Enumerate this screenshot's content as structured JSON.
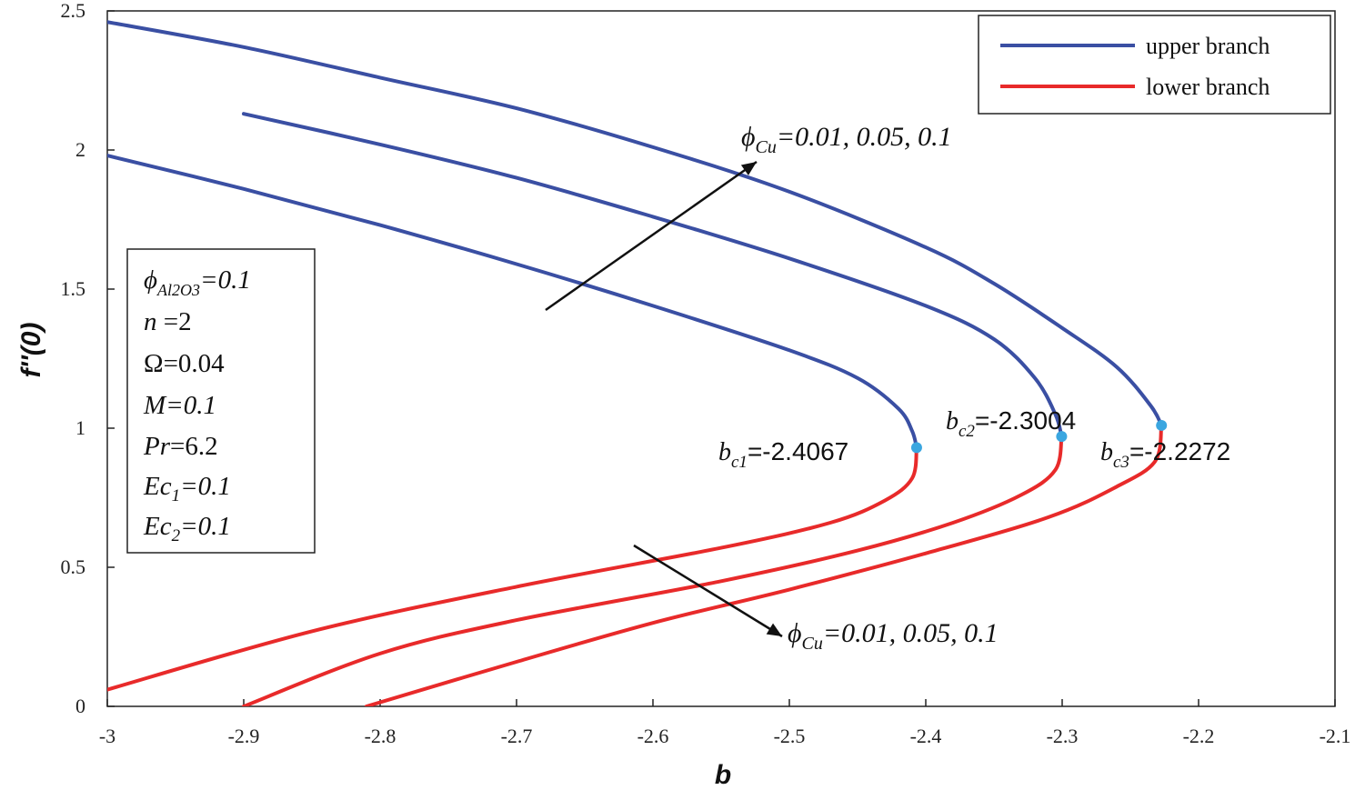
{
  "chart_data": {
    "type": "line",
    "xlabel": "b",
    "ylabel": "f''(0)",
    "xlim": [
      -3,
      -2.1
    ],
    "ylim": [
      0,
      2.5
    ],
    "xticks": [
      "-3",
      "-2.9",
      "-2.8",
      "-2.7",
      "-2.6",
      "-2.5",
      "-2.4",
      "-2.3",
      "-2.2",
      "-2.1"
    ],
    "yticks": [
      "0",
      "0.5",
      "1",
      "1.5",
      "2",
      "2.5"
    ],
    "grid": false,
    "legend": {
      "placement": "top-right",
      "entries": [
        {
          "label": "upper branch",
          "color": "#3a4fa3"
        },
        {
          "label": "lower branch",
          "color": "#e82a2a"
        }
      ]
    },
    "series": [
      {
        "branch": "upper",
        "color": "#3a4fa3",
        "points": [
          [
            -3.0,
            1.98
          ],
          [
            -2.9,
            1.86
          ],
          [
            -2.8,
            1.73
          ],
          [
            -2.7,
            1.59
          ],
          [
            -2.6,
            1.44
          ],
          [
            -2.5,
            1.28
          ],
          [
            -2.45,
            1.18
          ],
          [
            -2.42,
            1.07
          ],
          [
            -2.41,
            0.99
          ],
          [
            -2.4067,
            0.93
          ]
        ]
      },
      {
        "branch": "upper",
        "color": "#3a4fa3",
        "points": [
          [
            -2.9,
            2.13
          ],
          [
            -2.8,
            2.02
          ],
          [
            -2.7,
            1.9
          ],
          [
            -2.6,
            1.76
          ],
          [
            -2.5,
            1.61
          ],
          [
            -2.4,
            1.44
          ],
          [
            -2.35,
            1.32
          ],
          [
            -2.32,
            1.18
          ],
          [
            -2.305,
            1.05
          ],
          [
            -2.3004,
            0.97
          ]
        ]
      },
      {
        "branch": "upper",
        "color": "#3a4fa3",
        "points": [
          [
            -3.0,
            2.46
          ],
          [
            -2.9,
            2.37
          ],
          [
            -2.8,
            2.26
          ],
          [
            -2.7,
            2.15
          ],
          [
            -2.6,
            2.01
          ],
          [
            -2.5,
            1.85
          ],
          [
            -2.4,
            1.65
          ],
          [
            -2.35,
            1.52
          ],
          [
            -2.3,
            1.36
          ],
          [
            -2.26,
            1.22
          ],
          [
            -2.235,
            1.08
          ],
          [
            -2.2272,
            1.01
          ]
        ]
      },
      {
        "branch": "lower",
        "color": "#e82a2a",
        "points": [
          [
            -2.4067,
            0.93
          ],
          [
            -2.41,
            0.82
          ],
          [
            -2.43,
            0.74
          ],
          [
            -2.47,
            0.66
          ],
          [
            -2.55,
            0.57
          ],
          [
            -2.7,
            0.43
          ],
          [
            -2.85,
            0.27
          ],
          [
            -3.0,
            0.06
          ]
        ]
      },
      {
        "branch": "lower",
        "color": "#e82a2a",
        "points": [
          [
            -2.3004,
            0.97
          ],
          [
            -2.305,
            0.85
          ],
          [
            -2.33,
            0.76
          ],
          [
            -2.38,
            0.66
          ],
          [
            -2.45,
            0.56
          ],
          [
            -2.55,
            0.45
          ],
          [
            -2.7,
            0.31
          ],
          [
            -2.8,
            0.19
          ],
          [
            -2.9,
            0.0
          ]
        ]
      },
      {
        "branch": "lower",
        "color": "#e82a2a",
        "points": [
          [
            -2.2272,
            1.01
          ],
          [
            -2.232,
            0.88
          ],
          [
            -2.26,
            0.79
          ],
          [
            -2.31,
            0.68
          ],
          [
            -2.4,
            0.55
          ],
          [
            -2.5,
            0.42
          ],
          [
            -2.6,
            0.3
          ],
          [
            -2.7,
            0.16
          ],
          [
            -2.81,
            0.0
          ]
        ]
      }
    ],
    "critical_points": [
      {
        "x": -2.4067,
        "y": 0.93,
        "label_sub": "c1",
        "label_value": "=-2.4067"
      },
      {
        "x": -2.3004,
        "y": 0.97,
        "label_sub": "c2",
        "label_value": "=-2.3004"
      },
      {
        "x": -2.2272,
        "y": 1.01,
        "label_sub": "c3",
        "label_value": "=-2.2272"
      }
    ],
    "critical_point_color": "#3aa6e0",
    "critical_label_symbol": "b",
    "annotations": {
      "upper": {
        "symbol": "ϕ",
        "sub": "Cu",
        "text": "=0.01, 0.05, 0.1"
      },
      "lower": {
        "symbol": "ϕ",
        "sub": "Cu",
        "text": "=0.01, 0.05, 0.1"
      }
    },
    "parameters": [
      {
        "sym": "ϕ",
        "sub": "Al2O3",
        "val": "=0.1"
      },
      {
        "sym": "n",
        "sub": "",
        "val": " =2"
      },
      {
        "sym": "Ω",
        "sub": "",
        "val": "=0.04"
      },
      {
        "sym": "M",
        "sub": "",
        "val": "=0.1"
      },
      {
        "sym": "Pr",
        "sub": "",
        "val": "=6.2"
      },
      {
        "sym": "Ec",
        "sub": "1",
        "val": "=0.1"
      },
      {
        "sym": "Ec",
        "sub": "2",
        "val": "=0.1"
      }
    ]
  }
}
